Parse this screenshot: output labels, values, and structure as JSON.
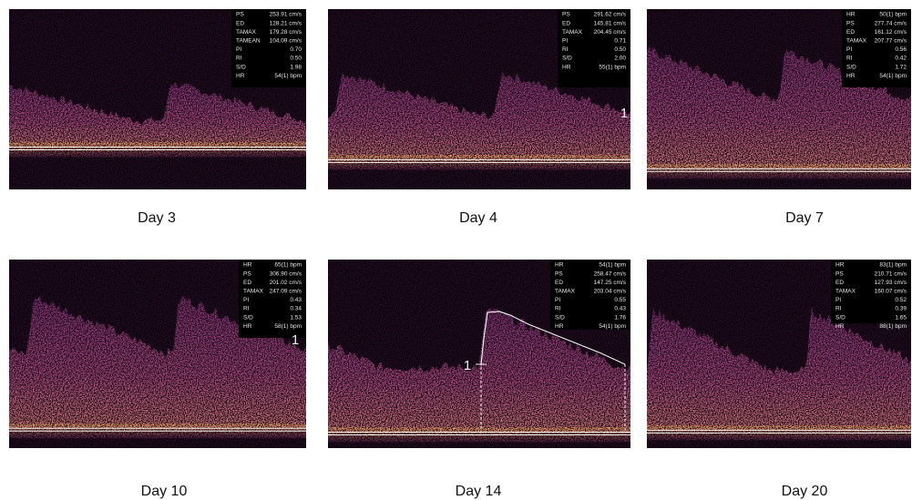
{
  "panels": [
    {
      "caption": "Day 3",
      "measurements": [
        {
          "label": "PS",
          "value": "253.91 cm/s"
        },
        {
          "label": "ED",
          "value": "128.21 cm/s"
        },
        {
          "label": "TAMAX",
          "value": "179.28 cm/s"
        },
        {
          "label": "TAMEAN",
          "value": "104.09 cm/s"
        },
        {
          "label": "PI",
          "value": "0.70"
        },
        {
          "label": "RI",
          "value": "0.50"
        },
        {
          "label": "S/D",
          "value": "1.98"
        },
        {
          "label": "HR",
          "value": "54(1) bpm"
        }
      ]
    },
    {
      "caption": "Day 4",
      "marker": "1",
      "measurements": [
        {
          "label": "PS",
          "value": "291.62 cm/s"
        },
        {
          "label": "ED",
          "value": "145.81 cm/s"
        },
        {
          "label": "TAMAX",
          "value": "204.45 cm/s"
        },
        {
          "label": "PI",
          "value": "0.71"
        },
        {
          "label": "RI",
          "value": "0.50"
        },
        {
          "label": "S/D",
          "value": "2.00"
        },
        {
          "label": "HR",
          "value": "55(1) bpm"
        }
      ]
    },
    {
      "caption": "Day 7",
      "measurements": [
        {
          "label": "HR",
          "value": "50(1) bpm"
        },
        {
          "label": "PS",
          "value": "277.74 cm/s"
        },
        {
          "label": "ED",
          "value": "161.12 cm/s"
        },
        {
          "label": "TAMAX",
          "value": "207.77 cm/s"
        },
        {
          "label": "PI",
          "value": "0.56"
        },
        {
          "label": "RI",
          "value": "0.42"
        },
        {
          "label": "S/D",
          "value": "1.72"
        },
        {
          "label": "HR",
          "value": "54(1) bpm"
        }
      ]
    },
    {
      "caption": "Day 10",
      "marker": "1",
      "measurements": [
        {
          "label": "HR",
          "value": "65(1) bpm"
        },
        {
          "label": "PS",
          "value": "306.90 cm/s"
        },
        {
          "label": "ED",
          "value": "201.02 cm/s"
        },
        {
          "label": "TAMAX",
          "value": "247.09 cm/s"
        },
        {
          "label": "PI",
          "value": "0.43"
        },
        {
          "label": "RI",
          "value": "0.34"
        },
        {
          "label": "S/D",
          "value": "1.53"
        },
        {
          "label": "HR",
          "value": "58(1) bpm"
        }
      ]
    },
    {
      "caption": "Day 14",
      "marker": "1",
      "measurements": [
        {
          "label": "HR",
          "value": "54(1) bpm"
        },
        {
          "label": "PS",
          "value": "258.47 cm/s"
        },
        {
          "label": "ED",
          "value": "147.25 cm/s"
        },
        {
          "label": "TAMAX",
          "value": "203.04 cm/s"
        },
        {
          "label": "PI",
          "value": "0.55"
        },
        {
          "label": "RI",
          "value": "0.43"
        },
        {
          "label": "S/D",
          "value": "1.76"
        },
        {
          "label": "HR",
          "value": "54(1) bpm"
        }
      ]
    },
    {
      "caption": "Day 20",
      "measurements": [
        {
          "label": "HR",
          "value": "83(1) bpm"
        },
        {
          "label": "PS",
          "value": "210.71 cm/s"
        },
        {
          "label": "ED",
          "value": "127.93 cm/s"
        },
        {
          "label": "TAMAX",
          "value": "160.07 cm/s"
        },
        {
          "label": "PI",
          "value": "0.52"
        },
        {
          "label": "RI",
          "value": "0.39"
        },
        {
          "label": "S/D",
          "value": "1.65"
        },
        {
          "label": "HR",
          "value": "88(1) bpm"
        }
      ]
    }
  ]
}
